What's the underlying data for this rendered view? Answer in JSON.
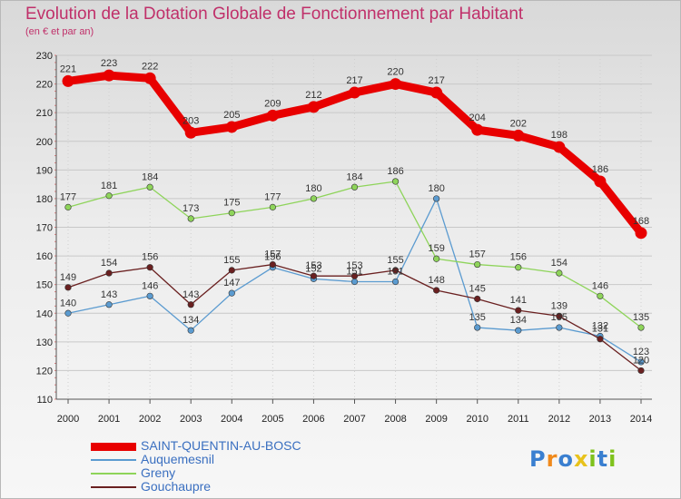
{
  "title": "Evolution de la Dotation Globale de Fonctionnement par Habitant",
  "subtitle": "(en € et par an)",
  "logo": {
    "text": "Proxiti",
    "colors": [
      "#3a7fd0",
      "#f08a1c",
      "#3a7fd0",
      "#e8c21c",
      "#7fc21c",
      "#3a7fd0",
      "#7fc21c"
    ]
  },
  "chart_data": {
    "type": "line",
    "x": [
      "2000",
      "2001",
      "2002",
      "2003",
      "2004",
      "2005",
      "2006",
      "2007",
      "2008",
      "2009",
      "2010",
      "2011",
      "2012",
      "2013",
      "2014"
    ],
    "ylim": [
      110,
      230
    ],
    "yticks": [
      110,
      120,
      130,
      140,
      150,
      160,
      170,
      180,
      190,
      200,
      210,
      220,
      230
    ],
    "grid": true,
    "legend_position": "bottom-left",
    "series": [
      {
        "name": "SAINT-QUENTIN-AU-BOSC",
        "color": "#e80000",
        "values": [
          221,
          223,
          222,
          203,
          205,
          209,
          212,
          217,
          220,
          217,
          204,
          202,
          198,
          186,
          168
        ]
      },
      {
        "name": "Auquemesnil",
        "color": "#5b9bd0",
        "values": [
          140,
          143,
          146,
          134,
          147,
          156,
          152,
          151,
          151,
          180,
          135,
          134,
          135,
          132,
          123
        ]
      },
      {
        "name": "Greny",
        "color": "#8ed45a",
        "values": [
          177,
          181,
          184,
          173,
          175,
          177,
          180,
          184,
          186,
          159,
          157,
          156,
          154,
          146,
          135
        ]
      },
      {
        "name": "Gouchaupre",
        "color": "#6a2020",
        "values": [
          149,
          154,
          156,
          143,
          155,
          157,
          153,
          153,
          155,
          148,
          145,
          141,
          139,
          131,
          120
        ]
      }
    ]
  }
}
